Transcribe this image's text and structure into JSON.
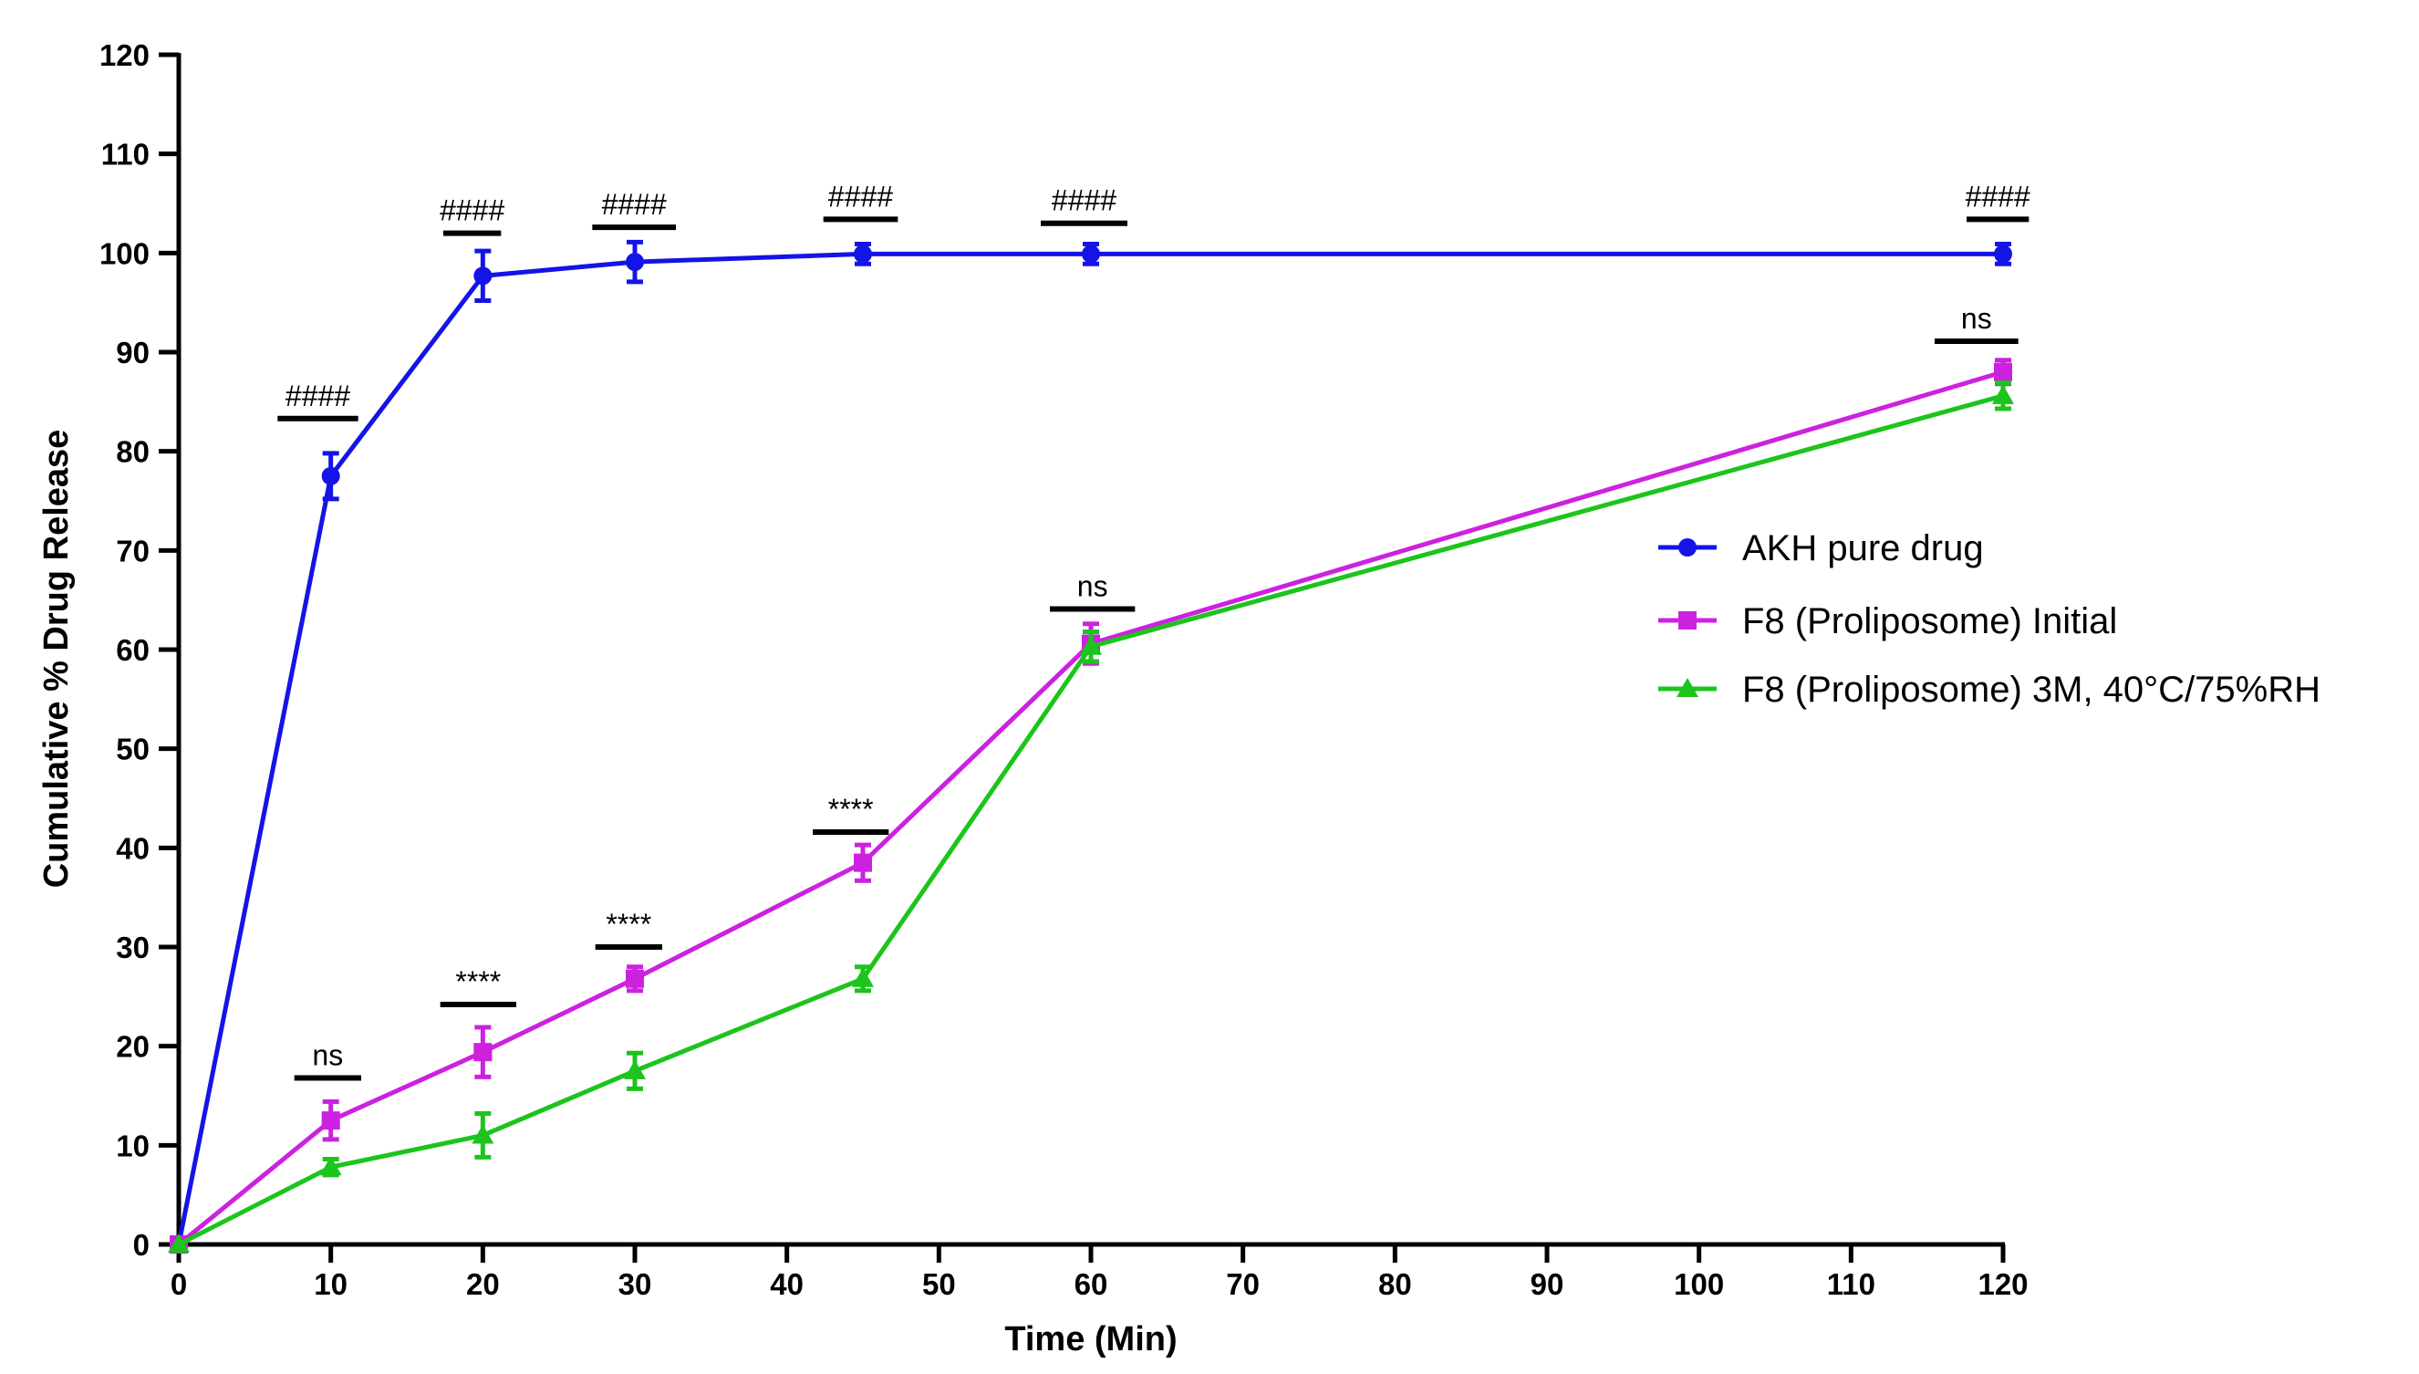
{
  "chart_data": {
    "type": "line",
    "xlabel": "Time (Min)",
    "ylabel": "Cumulative % Drug Release",
    "xlim": [
      0,
      120
    ],
    "ylim": [
      0,
      120
    ],
    "xticks": [
      0,
      10,
      20,
      30,
      40,
      50,
      60,
      70,
      80,
      90,
      100,
      110,
      120
    ],
    "yticks": [
      0,
      10,
      20,
      30,
      40,
      50,
      60,
      70,
      80,
      90,
      100,
      110,
      120
    ],
    "grid": false,
    "legend_position": "right",
    "series": [
      {
        "name": "AKH pure drug",
        "color": "#1414e6",
        "marker": "circle",
        "x": [
          0,
          10,
          20,
          30,
          45,
          60,
          120
        ],
        "y": [
          0,
          77.5,
          97.7,
          99.1,
          99.9,
          99.9,
          99.9
        ],
        "err": [
          0,
          2.3,
          2.5,
          2.0,
          1.0,
          1.0,
          1.0
        ]
      },
      {
        "name": "F8 (Proliposome) Initial",
        "color": "#cc22e0",
        "marker": "square",
        "x": [
          0,
          10,
          20,
          30,
          45,
          60,
          120
        ],
        "y": [
          0,
          12.5,
          19.4,
          26.8,
          38.5,
          60.6,
          88.0
        ],
        "err": [
          0,
          1.9,
          2.5,
          1.2,
          1.8,
          2.0,
          1.2
        ]
      },
      {
        "name": "F8 (Proliposome) 3M, 40°C/75%RH",
        "color": "#1cc41c",
        "marker": "triangle",
        "x": [
          0,
          10,
          20,
          30,
          45,
          60,
          120
        ],
        "y": [
          0,
          7.8,
          11.0,
          17.5,
          26.8,
          60.3,
          85.6
        ],
        "err": [
          0,
          0.8,
          2.2,
          1.8,
          1.2,
          1.5,
          1.3
        ]
      }
    ],
    "annotations": [
      {
        "text": "####",
        "x": 10,
        "bar_y": 83.3,
        "bar_x": [
          6.5,
          11.8
        ]
      },
      {
        "text": "####",
        "x": 20,
        "bar_y": 102.0,
        "bar_x": [
          17.4,
          21.2
        ]
      },
      {
        "text": "####",
        "x": 30,
        "bar_y": 102.6,
        "bar_x": [
          27.2,
          32.7
        ]
      },
      {
        "text": "####",
        "x": 45,
        "bar_y": 103.4,
        "bar_x": [
          42.4,
          47.3
        ]
      },
      {
        "text": "####",
        "x": 60,
        "bar_y": 103.0,
        "bar_x": [
          56.7,
          62.4
        ]
      },
      {
        "text": "####",
        "x": 120,
        "bar_y": 103.4,
        "bar_x": [
          117.6,
          121.7
        ]
      },
      {
        "text": "ns",
        "x": 10,
        "bar_y": 16.8,
        "bar_x": [
          7.6,
          12.0
        ]
      },
      {
        "text": "****",
        "x": 20,
        "bar_y": 24.2,
        "bar_x": [
          17.2,
          22.2
        ]
      },
      {
        "text": "****",
        "x": 30,
        "bar_y": 30.0,
        "bar_x": [
          27.4,
          31.8
        ]
      },
      {
        "text": "****",
        "x": 45,
        "bar_y": 41.6,
        "bar_x": [
          41.7,
          46.7
        ]
      },
      {
        "text": "ns",
        "x": 60,
        "bar_y": 64.1,
        "bar_x": [
          57.3,
          62.9
        ]
      },
      {
        "text": "ns",
        "x": 120,
        "bar_y": 91.1,
        "bar_x": [
          115.5,
          121.0
        ]
      }
    ]
  }
}
